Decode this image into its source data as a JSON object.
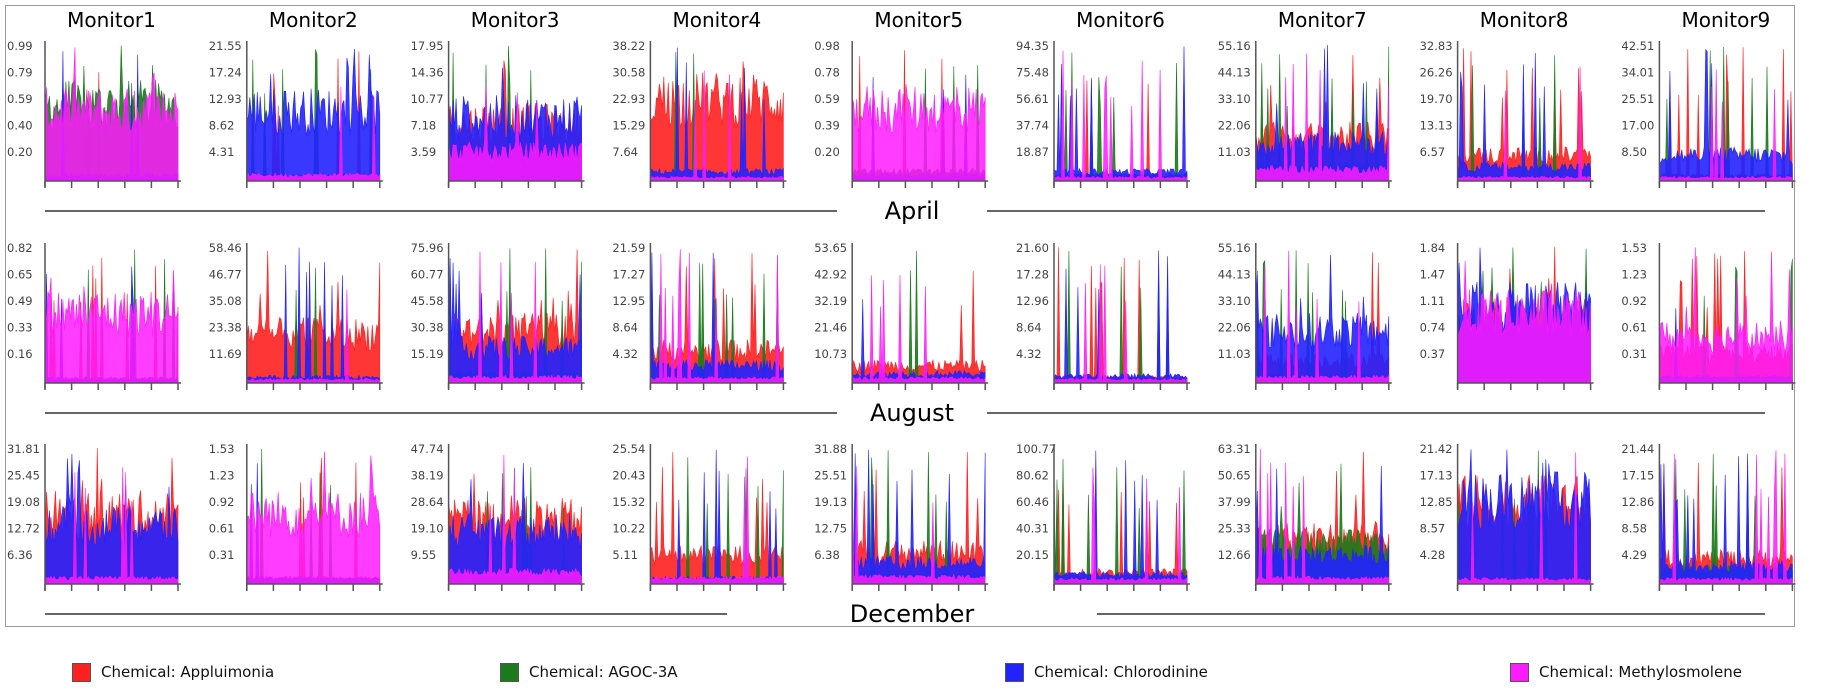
{
  "chart_data": {
    "type": "area",
    "monitors": [
      "Monitor1",
      "Monitor2",
      "Monitor3",
      "Monitor4",
      "Monitor5",
      "Monitor6",
      "Monitor7",
      "Monitor8",
      "Monitor9"
    ],
    "months": [
      "April",
      "August",
      "December"
    ],
    "series": [
      {
        "name": "Chemical: Appluimonia",
        "color": "#ff2020"
      },
      {
        "name": "Chemical: AGOC-3A",
        "color": "#1c7a1c"
      },
      {
        "name": "Chemical: Chlorodinine",
        "color": "#2222ff"
      },
      {
        "name": "Chemical: Methylosmolene",
        "color": "#ff1aff"
      }
    ],
    "panels": [
      [
        {
          "ticks": [
            "0.99",
            "0.79",
            "0.59",
            "0.40",
            "0.20"
          ],
          "ymax": 0.99,
          "levels": [
            0.02,
            0.65,
            0.05,
            0.6
          ]
        },
        {
          "ticks": [
            "21.55",
            "17.24",
            "12.93",
            "8.62",
            "4.31"
          ],
          "ymax": 21.55,
          "levels": [
            0.02,
            0.05,
            0.6,
            0.05
          ]
        },
        {
          "ticks": [
            "17.95",
            "14.36",
            "10.77",
            "7.18",
            "3.59"
          ],
          "ymax": 17.95,
          "levels": [
            0.5,
            0.05,
            0.55,
            0.25
          ]
        },
        {
          "ticks": [
            "38.22",
            "30.58",
            "22.93",
            "15.29",
            "7.64"
          ],
          "ymax": 38.22,
          "levels": [
            0.7,
            0.03,
            0.08,
            0.03
          ]
        },
        {
          "ticks": [
            "0.98",
            "0.78",
            "0.59",
            "0.39",
            "0.20"
          ],
          "ymax": 0.98,
          "levels": [
            0.02,
            0.08,
            0.05,
            0.62
          ]
        },
        {
          "ticks": [
            "94.35",
            "75.48",
            "56.61",
            "37.74",
            "18.87"
          ],
          "ymax": 94.35,
          "levels": [
            0.05,
            0.05,
            0.08,
            0.03
          ]
        },
        {
          "ticks": [
            "55.16",
            "44.13",
            "33.10",
            "22.06",
            "11.03"
          ],
          "ymax": 55.16,
          "levels": [
            0.38,
            0.12,
            0.32,
            0.1
          ]
        },
        {
          "ticks": [
            "32.83",
            "26.26",
            "19.70",
            "13.13",
            "6.57"
          ],
          "ymax": 32.83,
          "levels": [
            0.22,
            0.04,
            0.12,
            0.03
          ]
        },
        {
          "ticks": [
            "42.51",
            "34.01",
            "25.51",
            "17.00",
            "8.50"
          ],
          "ymax": 42.51,
          "levels": [
            0.05,
            0.04,
            0.22,
            0.03
          ]
        }
      ],
      [
        {
          "ticks": [
            "0.82",
            "0.65",
            "0.49",
            "0.33",
            "0.16"
          ],
          "ymax": 0.82,
          "levels": [
            0.02,
            0.02,
            0.04,
            0.6
          ]
        },
        {
          "ticks": [
            "58.46",
            "46.77",
            "35.08",
            "23.38",
            "11.69"
          ],
          "ymax": 58.46,
          "levels": [
            0.42,
            0.02,
            0.05,
            0.03
          ]
        },
        {
          "ticks": [
            "75.96",
            "60.77",
            "45.58",
            "30.38",
            "15.19"
          ],
          "ymax": 75.96,
          "levels": [
            0.45,
            0.08,
            0.3,
            0.05
          ]
        },
        {
          "ticks": [
            "21.59",
            "17.27",
            "12.95",
            "8.64",
            "4.32"
          ],
          "ymax": 21.59,
          "levels": [
            0.28,
            0.04,
            0.15,
            0.04
          ]
        },
        {
          "ticks": [
            "53.65",
            "42.92",
            "32.19",
            "21.46",
            "10.73"
          ],
          "ymax": 53.65,
          "levels": [
            0.15,
            0.04,
            0.08,
            0.04
          ]
        },
        {
          "ticks": [
            "21.60",
            "17.28",
            "12.96",
            "8.64",
            "4.32"
          ],
          "ymax": 21.6,
          "levels": [
            0.05,
            0.03,
            0.06,
            0.03
          ]
        },
        {
          "ticks": [
            "55.16",
            "44.13",
            "33.10",
            "22.06",
            "11.03"
          ],
          "ymax": 55.16,
          "levels": [
            0.2,
            0.06,
            0.45,
            0.05
          ]
        },
        {
          "ticks": [
            "1.84",
            "1.47",
            "1.11",
            "0.74",
            "0.37"
          ],
          "ymax": 1.84,
          "levels": [
            0.55,
            0.5,
            0.65,
            0.6
          ]
        },
        {
          "ticks": [
            "1.53",
            "1.23",
            "0.92",
            "0.61",
            "0.31"
          ],
          "ymax": 1.53,
          "levels": [
            0.25,
            0.05,
            0.05,
            0.4
          ]
        }
      ],
      [
        {
          "ticks": [
            "31.81",
            "25.45",
            "19.08",
            "12.72",
            "6.36"
          ],
          "ymax": 31.81,
          "levels": [
            0.6,
            0.05,
            0.5,
            0.05
          ]
        },
        {
          "ticks": [
            "1.53",
            "1.23",
            "0.92",
            "0.61",
            "0.31"
          ],
          "ymax": 1.53,
          "levels": [
            0.05,
            0.04,
            0.05,
            0.6
          ]
        },
        {
          "ticks": [
            "47.74",
            "38.19",
            "28.64",
            "19.10",
            "9.55"
          ],
          "ymax": 47.74,
          "levels": [
            0.55,
            0.05,
            0.45,
            0.1
          ]
        },
        {
          "ticks": [
            "25.54",
            "20.43",
            "15.32",
            "10.22",
            "5.11"
          ],
          "ymax": 25.54,
          "levels": [
            0.25,
            0.03,
            0.05,
            0.05
          ]
        },
        {
          "ticks": [
            "31.88",
            "25.51",
            "19.13",
            "12.75",
            "6.38"
          ],
          "ymax": 31.88,
          "levels": [
            0.28,
            0.08,
            0.18,
            0.06
          ]
        },
        {
          "ticks": [
            "100.77",
            "80.62",
            "60.46",
            "40.31",
            "20.15"
          ],
          "ymax": 100.77,
          "levels": [
            0.1,
            0.06,
            0.08,
            0.04
          ]
        },
        {
          "ticks": [
            "63.31",
            "50.65",
            "37.99",
            "25.33",
            "12.66"
          ],
          "ymax": 63.31,
          "levels": [
            0.4,
            0.35,
            0.25,
            0.05
          ]
        },
        {
          "ticks": [
            "21.42",
            "17.13",
            "12.85",
            "8.57",
            "4.28"
          ],
          "ymax": 21.42,
          "levels": [
            0.7,
            0.03,
            0.72,
            0.04
          ]
        },
        {
          "ticks": [
            "21.44",
            "17.15",
            "12.86",
            "8.58",
            "4.29"
          ],
          "ymax": 21.44,
          "levels": [
            0.22,
            0.12,
            0.15,
            0.04
          ]
        }
      ]
    ],
    "legend_position": "bottom",
    "grid": false
  }
}
